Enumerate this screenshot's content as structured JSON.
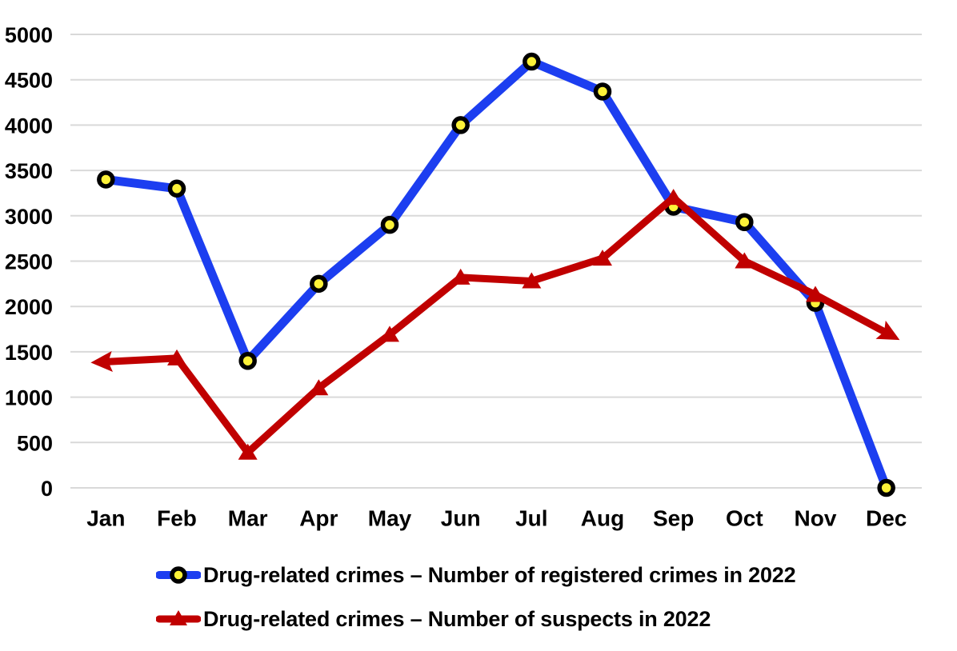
{
  "chart_data": {
    "type": "line",
    "title": "",
    "xlabel": "",
    "ylabel": "",
    "categories": [
      "Jan",
      "Feb",
      "Mar",
      "Apr",
      "May",
      "Jun",
      "Jul",
      "Aug",
      "Sep",
      "Oct",
      "Nov",
      "Dec"
    ],
    "series": [
      {
        "name": "Drug-related crimes – Number of registered crimes in 2022",
        "values": [
          3400,
          3300,
          1400,
          2250,
          2900,
          4000,
          4700,
          4370,
          3100,
          2930,
          2040,
          0
        ],
        "color": "#1c3ef0",
        "marker": "circle",
        "marker_fill": "#fdf238",
        "marker_stroke": "#000000",
        "line_width": 11
      },
      {
        "name": "Drug-related crimes – Number of suspects in 2022",
        "values": [
          1390,
          1430,
          390,
          1100,
          1690,
          2320,
          2280,
          2530,
          3200,
          2500,
          2130,
          1710
        ],
        "color": "#c00000",
        "marker": "triangle",
        "marker_fill": "#c00000",
        "marker_stroke": "#c00000",
        "line_width": 9,
        "end_arrows": true
      }
    ],
    "yticks": [
      0,
      500,
      1000,
      1500,
      2000,
      2500,
      3000,
      3500,
      4000,
      4500,
      5000
    ],
    "ylim": [
      0,
      5000
    ],
    "grid": true,
    "grid_color": "#d9d9d9",
    "text_color": "#000000",
    "background_color": "#ffffff",
    "legend_position": "bottom"
  }
}
